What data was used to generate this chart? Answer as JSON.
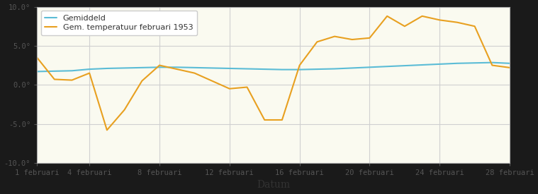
{
  "title": "",
  "xlabel": "Datum",
  "ylabel": "",
  "background_color": "#fafaf0",
  "plot_bg_color": "#fafaf0",
  "outer_bg_color": "#1a1a1a",
  "grid_color": "#d0d0d0",
  "ylim": [
    -10.0,
    10.0
  ],
  "yticks": [
    -10.0,
    -5.0,
    0.0,
    5.0,
    10.0
  ],
  "xtick_labels": [
    "1 februari",
    "4 februari",
    "8 februari",
    "12 februari",
    "16 februari",
    "20 februari",
    "24 februari",
    "28 februari"
  ],
  "xtick_positions": [
    1,
    4,
    8,
    12,
    16,
    20,
    24,
    28
  ],
  "gemiddeld_color": "#5bbcd6",
  "feb1953_color": "#e8a020",
  "legend_labels": [
    "Gemiddeld",
    "Gem. temperatuur februari 1953"
  ],
  "days": [
    1,
    2,
    3,
    4,
    5,
    6,
    7,
    8,
    9,
    10,
    11,
    12,
    13,
    14,
    15,
    16,
    17,
    18,
    19,
    20,
    21,
    22,
    23,
    24,
    25,
    26,
    27,
    28
  ],
  "gemiddeld": [
    1.7,
    1.75,
    1.8,
    2.0,
    2.1,
    2.15,
    2.2,
    2.25,
    2.25,
    2.2,
    2.15,
    2.1,
    2.05,
    2.0,
    1.95,
    1.95,
    2.0,
    2.05,
    2.15,
    2.25,
    2.35,
    2.45,
    2.55,
    2.65,
    2.75,
    2.8,
    2.85,
    2.75
  ],
  "feb1953": [
    3.5,
    0.7,
    0.6,
    1.5,
    -5.8,
    -3.2,
    0.5,
    2.5,
    2.0,
    1.5,
    0.5,
    -0.5,
    -0.3,
    -4.5,
    -4.5,
    2.5,
    5.5,
    6.2,
    5.8,
    6.0,
    8.8,
    7.5,
    8.8,
    8.3,
    8.0,
    7.5,
    2.5,
    2.2
  ]
}
